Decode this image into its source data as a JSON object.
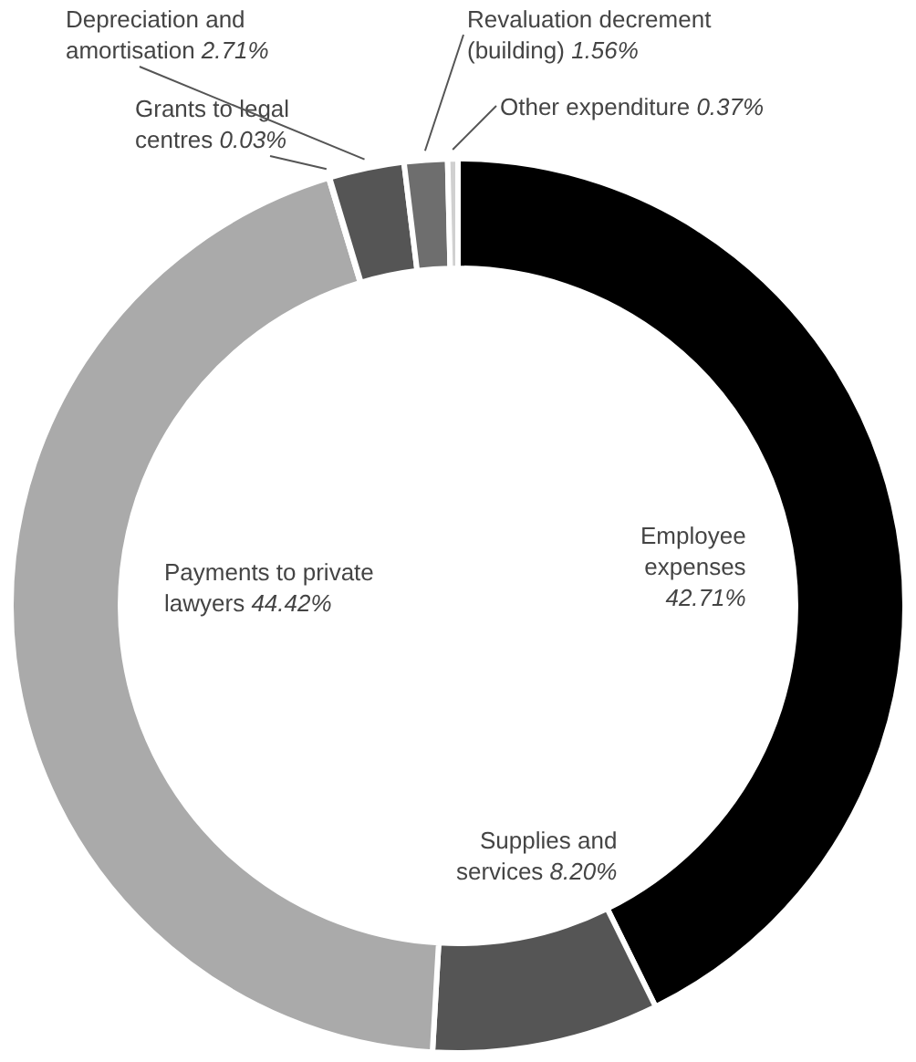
{
  "chart_data": {
    "type": "donut",
    "categories": [
      "Employee expenses",
      "Supplies and services",
      "Payments to private lawyers",
      "Grants to legal centres",
      "Depreciation and amortisation",
      "Revaluation decrement (building)",
      "Other expenditure"
    ],
    "values": [
      42.71,
      8.2,
      44.42,
      0.03,
      2.71,
      1.56,
      0.37
    ],
    "colors": [
      "#000000",
      "#555555",
      "#aaaaaa",
      "#555555",
      "#555555",
      "#6e6e6e",
      "#d0d0d0"
    ],
    "value_labels": [
      "42.71%",
      "8.20%",
      "44.42%",
      "0.03%",
      "2.71%",
      "1.56%",
      "0.37%"
    ]
  }
}
